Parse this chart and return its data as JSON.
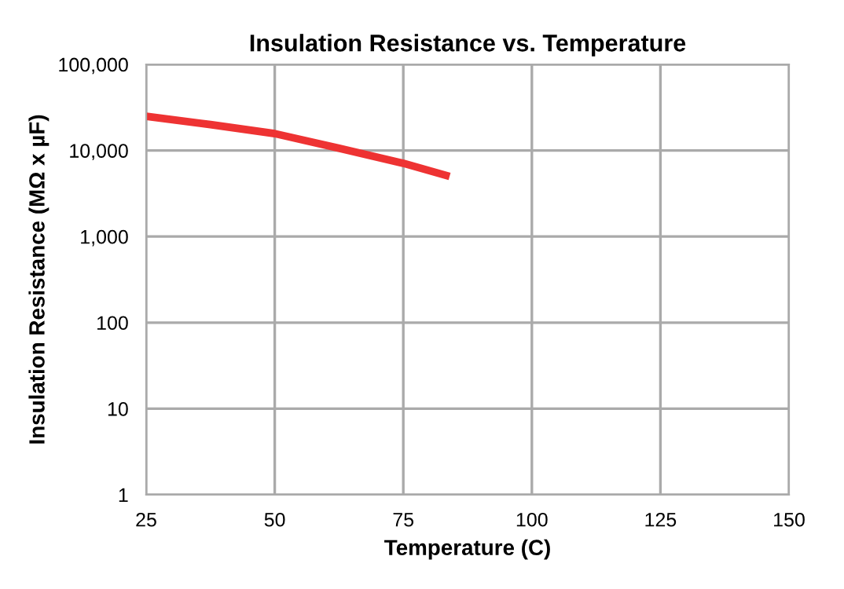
{
  "chart_data": {
    "type": "line",
    "title": "Insulation Resistance vs. Temperature",
    "xlabel": "Temperature (C)",
    "ylabel": "Insulation Resistance (MΩ x µF)",
    "series": [
      {
        "color": "#ee3333",
        "x": [
          25,
          37.5,
          50,
          62.5,
          75,
          84
        ],
        "values": [
          25000,
          20000,
          15700,
          10600,
          7100,
          5000
        ]
      }
    ],
    "log": "y",
    "xlim": [
      25,
      150
    ],
    "xticks": [
      25,
      50,
      75,
      100,
      125,
      150
    ],
    "ylim": [
      1,
      100000
    ],
    "yticks": [
      1,
      10,
      100,
      {
        "value": 1000,
        "label": "1,000"
      },
      {
        "value": 10000,
        "label": "10,000"
      },
      {
        "value": 100000,
        "label": "100,000"
      }
    ],
    "grid": true,
    "legend": false,
    "marker": "none",
    "line_style": "solid"
  }
}
